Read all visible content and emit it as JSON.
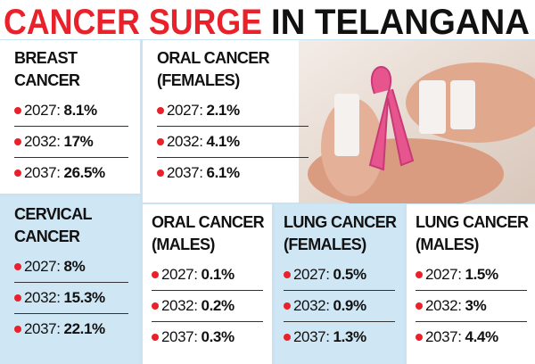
{
  "header": {
    "title_red": "CANCER SURGE",
    "title_black": "IN TELANGANA"
  },
  "panels": [
    {
      "title": "BREAST CANCER",
      "rows": [
        {
          "year": "2027:",
          "value": "8.1%"
        },
        {
          "year": "2032:",
          "value": "17%"
        },
        {
          "year": "2037:",
          "value": "26.5%"
        }
      ]
    },
    {
      "title": "ORAL CANCER (FEMALES)",
      "rows": [
        {
          "year": "2027:",
          "value": "2.1%"
        },
        {
          "year": "2032:",
          "value": "4.1%"
        },
        {
          "year": "2037:",
          "value": "6.1%"
        }
      ]
    },
    {
      "title": "CERVICAL CANCER",
      "rows": [
        {
          "year": "2027:",
          "value": "8%"
        },
        {
          "year": "2032:",
          "value": "15.3%"
        },
        {
          "year": "2037:",
          "value": "22.1%"
        }
      ]
    },
    {
      "title": "ORAL CANCER (MALES)",
      "rows": [
        {
          "year": "2027:",
          "value": "0.1%"
        },
        {
          "year": "2032:",
          "value": "0.2%"
        },
        {
          "year": "2037:",
          "value": "0.3%"
        }
      ]
    },
    {
      "title": "LUNG CANCER (FEMALES)",
      "rows": [
        {
          "year": "2027:",
          "value": "0.5%"
        },
        {
          "year": "2032:",
          "value": "0.9%"
        },
        {
          "year": "2037:",
          "value": "1.3%"
        }
      ]
    },
    {
      "title": "LUNG CANCER (MALES)",
      "rows": [
        {
          "year": "2027:",
          "value": "1.5%"
        },
        {
          "year": "2032:",
          "value": "3%"
        },
        {
          "year": "2037:",
          "value": "4.4%"
        }
      ]
    }
  ]
}
